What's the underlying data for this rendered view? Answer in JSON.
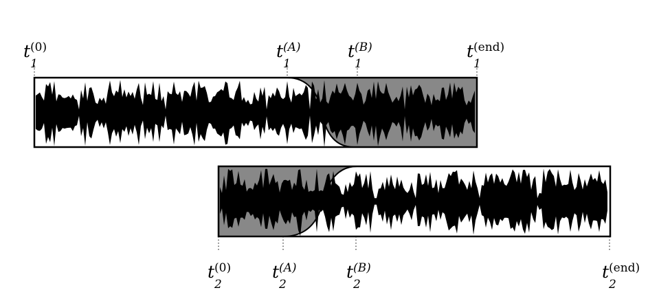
{
  "track1": {
    "labels": [
      {
        "name": "t1-start",
        "base": "t",
        "sub": "1",
        "sup": "(0)",
        "sup_italic": false
      },
      {
        "name": "t1-a",
        "base": "t",
        "sub": "1",
        "sup": "(A)",
        "sup_italic": true
      },
      {
        "name": "t1-b",
        "base": "t",
        "sub": "1",
        "sup": "(B)",
        "sup_italic": true
      },
      {
        "name": "t1-end",
        "base": "t",
        "sub": "1",
        "sup": "(end)",
        "sup_italic": false
      }
    ]
  },
  "track2": {
    "labels": [
      {
        "name": "t2-start",
        "base": "t",
        "sub": "2",
        "sup": "(0)",
        "sup_italic": false
      },
      {
        "name": "t2-a",
        "base": "t",
        "sub": "2",
        "sup": "(A)",
        "sup_italic": true
      },
      {
        "name": "t2-b",
        "base": "t",
        "sub": "2",
        "sup": "(B)",
        "sup_italic": true
      },
      {
        "name": "t2-end",
        "base": "t",
        "sub": "2",
        "sup": "(end)",
        "sup_italic": false
      }
    ]
  },
  "colors": {
    "fade_region": "#888888",
    "waveform": "#000000",
    "frame": "#000000"
  }
}
